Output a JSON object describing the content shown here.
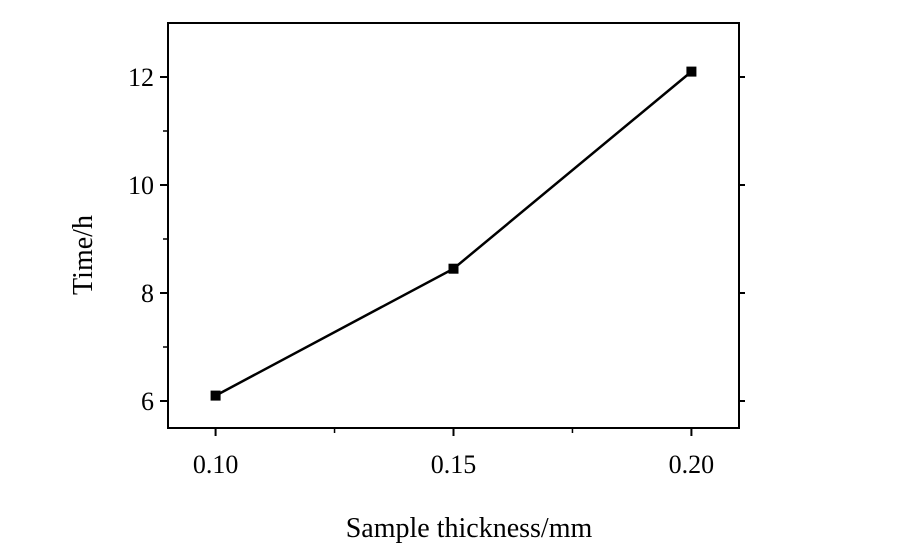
{
  "chart_data": {
    "type": "line",
    "xlabel": "Sample thickness/mm",
    "ylabel": "Time/h",
    "x_ticks": [
      "0.10",
      "0.15",
      "0.20"
    ],
    "y_ticks": [
      "6",
      "8",
      "10",
      "12"
    ],
    "xlim": [
      0.09,
      0.21
    ],
    "ylim": [
      5.5,
      13
    ],
    "grid": false,
    "series": [
      {
        "x": [
          0.1,
          0.15,
          0.2
        ],
        "y": [
          6.1,
          8.45,
          12.1
        ],
        "marker": "square",
        "color": "#000000"
      }
    ]
  }
}
